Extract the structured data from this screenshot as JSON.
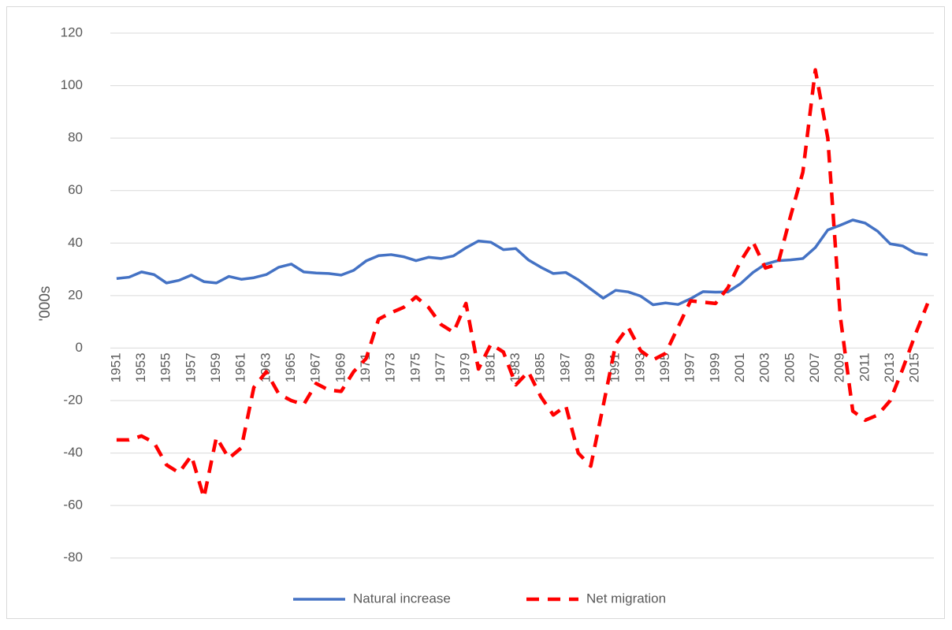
{
  "chart_data": {
    "type": "line",
    "y_label": "'000s",
    "categories": [
      "1951",
      null,
      "1953",
      null,
      "1955",
      null,
      "1957",
      null,
      "1959",
      null,
      "1961",
      null,
      "1963",
      null,
      "1965",
      null,
      "1967",
      null,
      "1969",
      null,
      "1971",
      null,
      "1973",
      null,
      "1975",
      null,
      "1977",
      null,
      "1979",
      null,
      "1981",
      null,
      "1983",
      null,
      "1985",
      null,
      "1987",
      null,
      "1989",
      null,
      "1991",
      null,
      "1993",
      null,
      "1995",
      null,
      "1997",
      null,
      "1999",
      null,
      "2001",
      null,
      "2003",
      null,
      "2005",
      null,
      "2007",
      null,
      "2009",
      null,
      "2011",
      null,
      "2013",
      null,
      "2015",
      null
    ],
    "series": [
      {
        "name": "Natural increase",
        "color": "#4472c4",
        "dashed": false,
        "values": [
          26.5,
          27,
          29,
          28,
          24.8,
          25.8,
          27.8,
          25.3,
          24.8,
          27.3,
          26.2,
          26.8,
          28,
          30.8,
          32,
          29,
          28.6,
          28.4,
          27.8,
          29.6,
          33.2,
          35.2,
          35.6,
          34.8,
          33.3,
          34.6,
          34.1,
          35.1,
          38.2,
          40.8,
          40.3,
          37.5,
          37.9,
          33.6,
          30.8,
          28.4,
          28.8,
          26,
          22.5,
          19,
          22,
          21.4,
          19.8,
          16.5,
          17.2,
          16.6,
          18.8,
          21.5,
          21.3,
          21.4,
          24.5,
          28.8,
          32,
          33.3,
          33.6,
          34.1,
          38.3,
          45,
          46.8,
          48.8,
          47.6,
          44.5,
          39.7,
          38.9,
          36.2,
          35.5
        ]
      },
      {
        "name": "Net migration",
        "color": "#ff0000",
        "dashed": true,
        "values": [
          -35,
          -35,
          -33.5,
          -36,
          -44.5,
          -47.5,
          -41,
          -57,
          -34,
          -42,
          -38,
          -15,
          -9,
          -17.5,
          -20,
          -21.5,
          -13.5,
          -16,
          -16.5,
          -9,
          -4,
          11,
          13.5,
          15.5,
          19.5,
          15.5,
          9,
          6,
          17,
          -8,
          1.5,
          -1.5,
          -14,
          -9,
          -18.5,
          -25.5,
          -22,
          -40,
          -45,
          -22,
          1.5,
          8,
          -1,
          -4.5,
          -2,
          8,
          18,
          17.5,
          17,
          23,
          33,
          40.5,
          30.5,
          32,
          50,
          67,
          106,
          80,
          12,
          -24,
          -27.5,
          -25.5,
          -20,
          -8,
          5,
          17
        ]
      }
    ],
    "ylim": [
      -90,
      120
    ],
    "yticks": [
      -80,
      -60,
      -40,
      -20,
      0,
      20,
      40,
      60,
      80,
      100,
      120
    ],
    "grid": true,
    "legend": "bottom"
  }
}
